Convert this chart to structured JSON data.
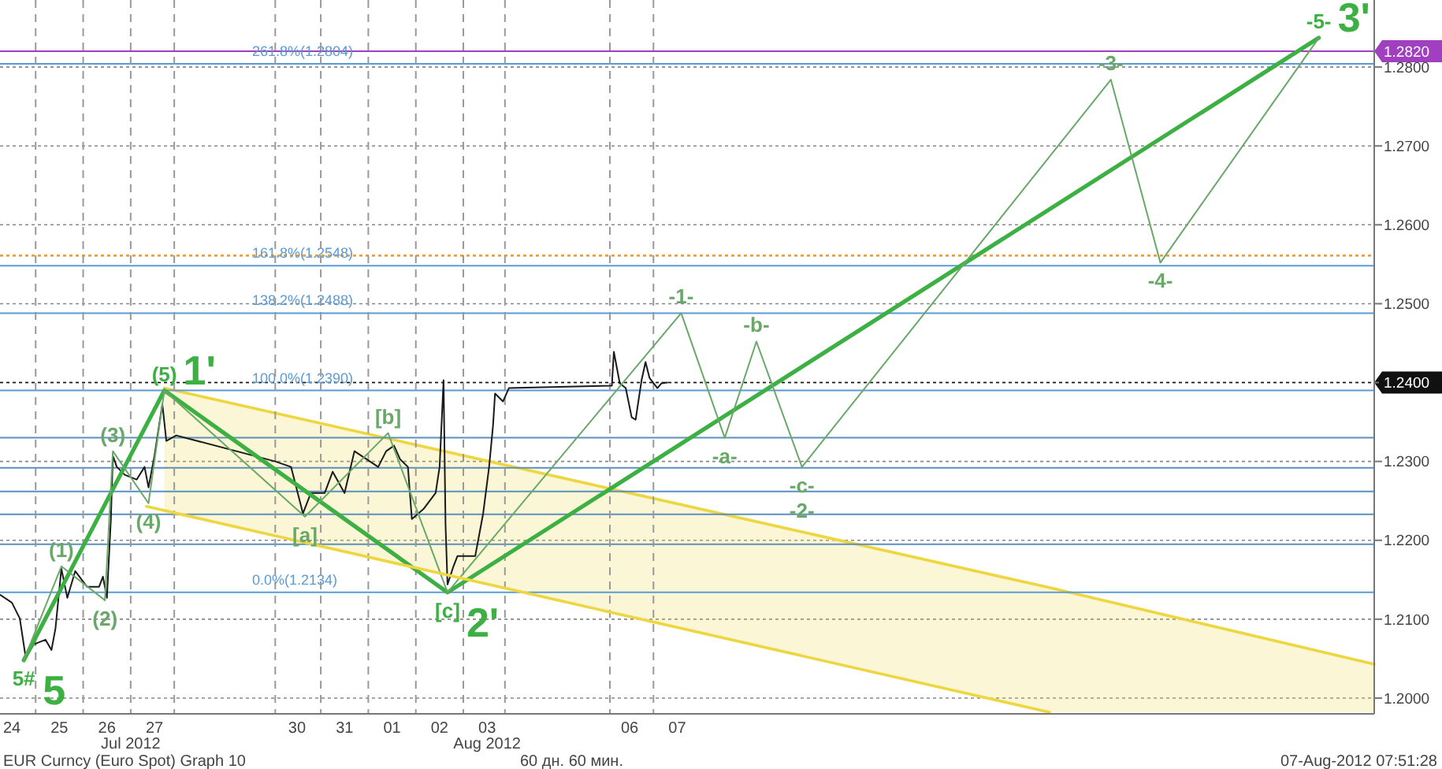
{
  "chart_data": {
    "type": "line",
    "xlim": [
      "2012-07-24T06:00",
      "2012-08-22T04:00"
    ],
    "xticks": [
      {
        "value": "2012-07-24T12:00",
        "label": "24"
      },
      {
        "value": "2012-07-25T12:00",
        "label": "25"
      },
      {
        "value": "2012-07-26T12:00",
        "label": "26"
      },
      {
        "value": "2012-07-27T12:00",
        "label": "27"
      },
      {
        "value": "2012-07-30T12:00",
        "label": "30"
      },
      {
        "value": "2012-07-31T12:00",
        "label": "31"
      },
      {
        "value": "2012-08-01T12:00",
        "label": "01"
      },
      {
        "value": "2012-08-02T12:00",
        "label": "02"
      },
      {
        "value": "2012-08-03T12:00",
        "label": "03"
      },
      {
        "value": "2012-08-06T12:00",
        "label": "06"
      },
      {
        "value": "2012-08-07T12:00",
        "label": "07"
      }
    ],
    "ylim": [
      1.198,
      1.2885
    ],
    "yticks": [
      {
        "value": 1.2,
        "label": "1.2000"
      },
      {
        "value": 1.21,
        "label": "1.2100"
      },
      {
        "value": 1.22,
        "label": "1.2200"
      },
      {
        "value": 1.23,
        "label": "1.2300"
      },
      {
        "value": 1.24,
        "label": null
      },
      {
        "value": 1.25,
        "label": "1.2500"
      },
      {
        "value": 1.26,
        "label": "1.2600"
      },
      {
        "value": 1.27,
        "label": "1.2700"
      },
      {
        "value": 1.28,
        "label": "1.2800"
      }
    ],
    "grid": "y",
    "series": [
      {
        "color": "#1a1a1a",
        "x": [
          "2012-07-24T06:00",
          "2012-07-24T12:00",
          "2012-07-24T16:00",
          "2012-07-24T19:00",
          "2012-07-24T23:00",
          "2012-07-25T05:00",
          "2012-07-25T08:00",
          "2012-07-25T10:00",
          "2012-07-25T13:00",
          "2012-07-25T16:00",
          "2012-07-25T20:00",
          "2012-07-26T02:00",
          "2012-07-26T08:00",
          "2012-07-26T10:00",
          "2012-07-26T12:00",
          "2012-07-26T14:00",
          "2012-07-26T15:00",
          "2012-07-26T17:00",
          "2012-07-26T21:00",
          "2012-07-27T03:00",
          "2012-07-27T07:00",
          "2012-07-27T09:00",
          "2012-07-27T12:00",
          "2012-07-27T16:00",
          "2012-07-27T18:00",
          "2012-07-27T23:00",
          "2012-07-30T01:00",
          "2012-07-30T09:00",
          "2012-07-30T15:00",
          "2012-07-30T19:00",
          "2012-07-31T02:00",
          "2012-07-31T06:00",
          "2012-07-31T12:00",
          "2012-07-31T17:00",
          "2012-07-31T23:00",
          "2012-08-01T05:00",
          "2012-08-01T09:00",
          "2012-08-01T13:00",
          "2012-08-01T16:00",
          "2012-08-01T20:00",
          "2012-08-01T22:00",
          "2012-08-02T04:00",
          "2012-08-02T10:00",
          "2012-08-02T12:00",
          "2012-08-02T14:00",
          "2012-08-02T15:00",
          "2012-08-02T16:00",
          "2012-08-02T19:00",
          "2012-08-02T21:00",
          "2012-08-03T06:00",
          "2012-08-03T10:00",
          "2012-08-03T13:00",
          "2012-08-03T15:00",
          "2012-08-03T16:00",
          "2012-08-03T20:00",
          "2012-08-03T23:00",
          "2012-08-06T03:00",
          "2012-08-06T04:00",
          "2012-08-06T07:00",
          "2012-08-06T10:00",
          "2012-08-06T13:00",
          "2012-08-06T15:00",
          "2012-08-06T18:00",
          "2012-08-06T20:00",
          "2012-08-06T22:00",
          "2012-08-07T02:00",
          "2012-08-07T04:00",
          "2012-08-07T07:00"
        ],
        "values": [
          1.2131,
          1.2121,
          1.2101,
          1.2051,
          1.2068,
          1.2074,
          1.2061,
          1.2088,
          1.2164,
          1.2127,
          1.2161,
          1.2141,
          1.2141,
          1.2154,
          1.2127,
          1.2227,
          1.2307,
          1.2293,
          1.2283,
          1.2277,
          1.2293,
          1.2267,
          1.2307,
          1.2373,
          1.2326,
          1.2333,
          1.23,
          1.2293,
          1.2234,
          1.226,
          1.226,
          1.2287,
          1.226,
          1.2313,
          1.2303,
          1.2293,
          1.2313,
          1.232,
          1.2303,
          1.2293,
          1.2227,
          1.224,
          1.226,
          1.2293,
          1.2403,
          1.222,
          1.2144,
          1.2167,
          1.218,
          1.218,
          1.2234,
          1.2293,
          1.2346,
          1.2386,
          1.2376,
          1.2393,
          1.2396,
          1.2439,
          1.2399,
          1.2393,
          1.2356,
          1.2353,
          1.2403,
          1.2426,
          1.2406,
          1.2393,
          1.2399,
          1.24
        ]
      },
      {
        "color": "#3cb043",
        "x": [
          "2012-07-24T18:00",
          "2012-07-27T17:00",
          "2012-08-02T16:00",
          "2012-08-21T00:00"
        ],
        "values": [
          1.2048,
          1.239,
          1.2134,
          1.2837
        ]
      },
      {
        "color": "#6aa86a",
        "x": [
          "2012-07-24T18:00",
          "2012-07-25T13:00",
          "2012-07-26T11:00",
          "2012-07-26T15:00",
          "2012-07-27T09:00",
          "2012-07-27T17:00",
          "2012-07-30T16:00",
          "2012-08-01T10:00",
          "2012-08-02T16:00",
          "2012-08-07T14:00",
          "2012-08-08T12:00",
          "2012-08-09T04:00",
          "2012-08-10T03:00",
          "2012-08-16T15:00",
          "2012-08-17T16:00",
          "2012-08-21T00:00"
        ],
        "values": [
          1.2048,
          1.2167,
          1.2124,
          1.2313,
          1.2247,
          1.239,
          1.223,
          1.2336,
          1.2134,
          1.2488,
          1.233,
          1.2452,
          1.2293,
          1.2784,
          1.2552,
          1.2837
        ]
      },
      {
        "color": "#eed640",
        "x": [
          "2012-07-27T17:00",
          "2012-08-15T08:00",
          "2012-08-22T04:00"
        ],
        "values": [
          1.2393,
          1.214,
          1.2043
        ],
        "lower": [
          1.2235,
          1.1982,
          1.1982
        ],
        "upper": [
          1.2393,
          1.214,
          1.2043
        ]
      },
      {
        "color": "#eed640",
        "x": [
          "2012-07-27T08:00",
          "2012-08-15T08:00"
        ],
        "values": [
          1.2243,
          1.1982
        ]
      }
    ],
    "ref_lines": [
      {
        "axis": "y",
        "value": 1.282,
        "label": "1.2820",
        "color": "#a040c0"
      },
      {
        "axis": "y",
        "value": 1.2561,
        "label": null,
        "color": "#e8a040",
        "line_style": "dotted"
      },
      {
        "axis": "y",
        "value": 1.24,
        "label": "1.2400",
        "color": "#111111",
        "line_style": "dotted"
      },
      {
        "axis": "y",
        "value": 1.2804,
        "label": "261.8%(1.2804)",
        "color": "#5b9bd5"
      },
      {
        "axis": "y",
        "value": 1.2548,
        "label": "161.8%(1.2548)",
        "color": "#5b9bd5"
      },
      {
        "axis": "y",
        "value": 1.2488,
        "label": "138.2%(1.2488)",
        "color": "#5b9bd5"
      },
      {
        "axis": "y",
        "value": 1.239,
        "label": "100.0%(1.2390)",
        "color": "#5b9bd5"
      },
      {
        "axis": "y",
        "value": 1.233,
        "label": null,
        "color": "#5b8fbd"
      },
      {
        "axis": "y",
        "value": 1.2292,
        "label": null,
        "color": "#5b8fbd"
      },
      {
        "axis": "y",
        "value": 1.2262,
        "label": null,
        "color": "#5b8fbd"
      },
      {
        "axis": "y",
        "value": 1.2233,
        "label": null,
        "color": "#5b8fbd"
      },
      {
        "axis": "y",
        "value": 1.2195,
        "label": null,
        "color": "#5b8fbd"
      },
      {
        "axis": "y",
        "value": 1.2134,
        "label": "0.0%(1.2134)",
        "color": "#5b9bd5"
      },
      {
        "axis": "x",
        "value": "2012-07-25T00:00",
        "label": null,
        "color": "#999999",
        "line_style": "dashed"
      },
      {
        "axis": "x",
        "value": "2012-07-26T00:00",
        "label": null,
        "color": "#999999",
        "line_style": "dashed"
      },
      {
        "axis": "x",
        "value": "2012-07-27T00:00",
        "label": null,
        "color": "#999999",
        "line_style": "dashed"
      },
      {
        "axis": "x",
        "value": "2012-07-27T22:00",
        "label": null,
        "color": "#999999",
        "line_style": "dashed"
      },
      {
        "axis": "x",
        "value": "2012-07-30T01:00",
        "label": null,
        "color": "#999999",
        "line_style": "dashed"
      },
      {
        "axis": "x",
        "value": "2012-07-31T00:00",
        "label": null,
        "color": "#999999",
        "line_style": "dashed"
      },
      {
        "axis": "x",
        "value": "2012-08-01T00:00",
        "label": null,
        "color": "#999999",
        "line_style": "dashed"
      },
      {
        "axis": "x",
        "value": "2012-08-02T00:00",
        "label": null,
        "color": "#999999",
        "line_style": "dashed"
      },
      {
        "axis": "x",
        "value": "2012-08-03T00:00",
        "label": null,
        "color": "#999999",
        "line_style": "dashed"
      },
      {
        "axis": "x",
        "value": "2012-08-03T21:00",
        "label": null,
        "color": "#999999",
        "line_style": "dashed"
      },
      {
        "axis": "x",
        "value": "2012-08-06T02:00",
        "label": null,
        "color": "#999999",
        "line_style": "dashed"
      },
      {
        "axis": "x",
        "value": "2012-08-07T00:00",
        "label": null,
        "color": "#999999",
        "line_style": "dashed"
      }
    ],
    "annotations": [
      {
        "text": "5#",
        "x": "2012-07-24T18:00",
        "y": 1.2048
      },
      {
        "text": "5",
        "x": "2012-07-24T18:00",
        "y": 1.2048
      },
      {
        "text": "(1)",
        "x": "2012-07-25T13:00",
        "y": 1.2167
      },
      {
        "text": "(2)",
        "x": "2012-07-26T11:00",
        "y": 1.2124
      },
      {
        "text": "(3)",
        "x": "2012-07-26T15:00",
        "y": 1.2313
      },
      {
        "text": "(4)",
        "x": "2012-07-27T09:00",
        "y": 1.2247
      },
      {
        "text": "(5)",
        "x": "2012-07-27T17:00",
        "y": 1.239
      },
      {
        "text": "1'",
        "x": "2012-07-27T17:00",
        "y": 1.239
      },
      {
        "text": "[a]",
        "x": "2012-07-30T16:00",
        "y": 1.223
      },
      {
        "text": "[b]",
        "x": "2012-08-01T10:00",
        "y": 1.2336
      },
      {
        "text": "[c]",
        "x": "2012-08-02T16:00",
        "y": 1.2134
      },
      {
        "text": "2'",
        "x": "2012-08-02T16:00",
        "y": 1.2134
      },
      {
        "text": "-1-",
        "x": "2012-08-07T14:00",
        "y": 1.2488
      },
      {
        "text": "-a-",
        "x": "2012-08-08T12:00",
        "y": 1.233
      },
      {
        "text": "-b-",
        "x": "2012-08-09T04:00",
        "y": 1.2452
      },
      {
        "text": "-c-",
        "x": "2012-08-10T03:00",
        "y": 1.2293
      },
      {
        "text": "-2-",
        "x": "2012-08-10T03:00",
        "y": 1.2293
      },
      {
        "text": "-3-",
        "x": "2012-08-16T15:00",
        "y": 1.2784
      },
      {
        "text": "-4-",
        "x": "2012-08-17T16:00",
        "y": 1.2552
      },
      {
        "text": "-5-",
        "x": "2012-08-21T00:00",
        "y": 1.2837
      },
      {
        "text": "3'",
        "x": "2012-08-21T00:00",
        "y": 1.2837
      },
      "Jul 2012",
      "Aug 2012",
      "EUR Curncy (Euro Spot) Graph 10",
      "60 дн. 60 мин.",
      "07-Aug-2012 07:51:28"
    ]
  }
}
